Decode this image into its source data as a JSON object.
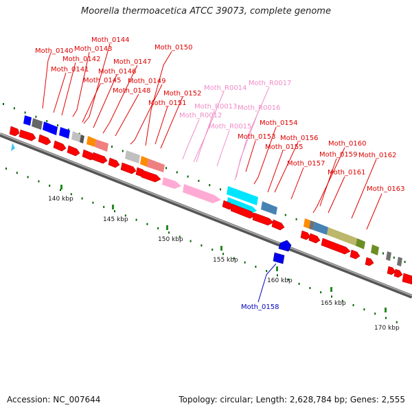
{
  "title": "Moorella thermoacetica ATCC 39073, complete genome",
  "footer": {
    "accession": "Accession: NC_007644",
    "summary": "Topology: circular; Length: 2,628,784 bp; Genes: 2,555"
  },
  "ticks": [
    "140 kbp",
    "145 kbp",
    "150 kbp",
    "155 kbp",
    "160 kbp",
    "165 kbp",
    "170 kbp"
  ],
  "labels": [
    {
      "text": "Moth_0140",
      "kind": "cds"
    },
    {
      "text": "Moth_0143",
      "kind": "cds"
    },
    {
      "text": "Moth_0144",
      "kind": "cds"
    },
    {
      "text": "Moth_0142",
      "kind": "cds"
    },
    {
      "text": "Moth_0141",
      "kind": "cds"
    },
    {
      "text": "Moth_0147",
      "kind": "cds"
    },
    {
      "text": "Moth_0146",
      "kind": "cds"
    },
    {
      "text": "Moth_0145",
      "kind": "cds"
    },
    {
      "text": "Moth_0149",
      "kind": "cds"
    },
    {
      "text": "Moth_0148",
      "kind": "cds"
    },
    {
      "text": "Moth_0150",
      "kind": "cds"
    },
    {
      "text": "Moth_0152",
      "kind": "cds"
    },
    {
      "text": "Moth_0151",
      "kind": "cds"
    },
    {
      "text": "Moth_R0014",
      "kind": "rna"
    },
    {
      "text": "Moth_R0017",
      "kind": "rna"
    },
    {
      "text": "Moth_R0013",
      "kind": "rna"
    },
    {
      "text": "Moth_R0016",
      "kind": "rna"
    },
    {
      "text": "Moth_R0012",
      "kind": "rna"
    },
    {
      "text": "Moth_R0015",
      "kind": "rna"
    },
    {
      "text": "Moth_0154",
      "kind": "cds"
    },
    {
      "text": "Moth_0153",
      "kind": "cds"
    },
    {
      "text": "Moth_0156",
      "kind": "cds"
    },
    {
      "text": "Moth_0155",
      "kind": "cds"
    },
    {
      "text": "Moth_0157",
      "kind": "cds"
    },
    {
      "text": "Moth_0160",
      "kind": "cds"
    },
    {
      "text": "Moth_0159",
      "kind": "cds"
    },
    {
      "text": "Moth_0162",
      "kind": "cds"
    },
    {
      "text": "Moth_0161",
      "kind": "cds"
    },
    {
      "text": "Moth_0163",
      "kind": "cds"
    },
    {
      "text": "Moth_0158",
      "kind": "reverse"
    }
  ],
  "colors": {
    "cds_label": "#e00000",
    "rna_label": "#f08cc8",
    "reverse_label": "#0000c0",
    "backbone": "#7a7a7a",
    "cds": "#ff0000",
    "rrna": "#ffaad4",
    "trna": "#00ffff",
    "tick": "#006400",
    "cog_blue": "#0000ff",
    "cog_gray": "#707070",
    "cog_orange": "#ff8c00",
    "cog_salmon": "#f08080",
    "cog_steel": "#4682b4",
    "cog_khaki": "#bdb76b",
    "cog_olive": "#6b8e23",
    "cog_light": "#c0c0c0"
  }
}
